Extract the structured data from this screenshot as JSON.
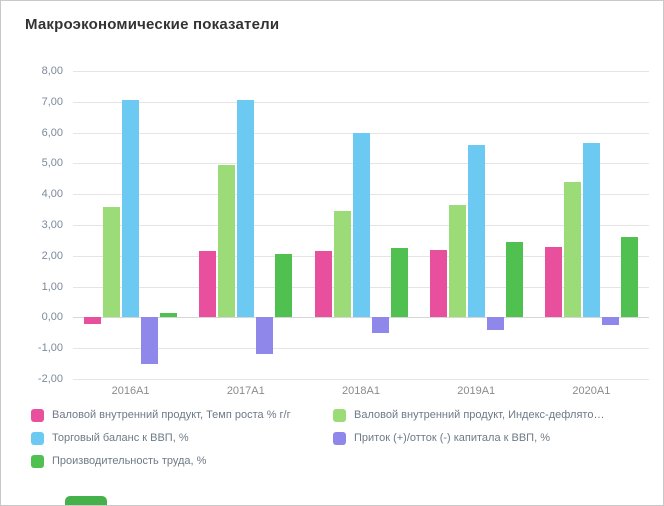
{
  "page": {
    "title": "Макроэкономические показатели"
  },
  "chart_data": {
    "type": "bar",
    "title": "Макроэкономические показатели",
    "categories": [
      "2016A1",
      "2017A1",
      "2018A1",
      "2019A1",
      "2020A1"
    ],
    "series": [
      {
        "name": "Валовой внутренний продукт, Темп роста % г/г",
        "color": "#e8509e",
        "values": [
          -0.2,
          2.15,
          2.15,
          2.2,
          2.3
        ]
      },
      {
        "name": "Валовой внутренний продукт, Индекс-дефлято…",
        "color": "#9bdc78",
        "values": [
          3.6,
          4.95,
          3.45,
          3.65,
          4.4
        ]
      },
      {
        "name": "Торговый баланс к ВВП, %",
        "color": "#6bc9f2",
        "values": [
          7.05,
          7.05,
          6.0,
          5.6,
          5.65
        ]
      },
      {
        "name": "Приток (+)/отток (-) капитала к ВВП, %",
        "color": "#8f88ea",
        "values": [
          -1.5,
          -1.2,
          -0.5,
          -0.4,
          -0.25
        ]
      },
      {
        "name": "Производительность труда, %",
        "color": "#50c150",
        "values": [
          0.15,
          2.05,
          2.25,
          2.45,
          2.6
        ]
      }
    ],
    "ylim": [
      -2,
      8
    ],
    "ytick_values": [
      8,
      7,
      6,
      5,
      4,
      3,
      2,
      1,
      0,
      -1,
      -2
    ],
    "yticks": [
      "8,00",
      "7,00",
      "6,00",
      "5,00",
      "4,00",
      "3,00",
      "2,00",
      "1,00",
      "0,00",
      "-1,00",
      "-2,00"
    ],
    "xlabel": "",
    "ylabel": "",
    "grid": true,
    "legend_position": "bottom"
  },
  "legend": {
    "items": [
      {
        "label": "Валовой внутренний продукт, Темп роста % г/г",
        "color": "#e8509e"
      },
      {
        "label": "Валовой внутренний продукт, Индекс-дефлято…",
        "color": "#9bdc78"
      },
      {
        "label": "Торговый баланс к ВВП, %",
        "color": "#6bc9f2"
      },
      {
        "label": "Приток (+)/отток (-) капитала к ВВП, %",
        "color": "#8f88ea"
      },
      {
        "label": "Производительность труда, %",
        "color": "#50c150"
      }
    ]
  }
}
